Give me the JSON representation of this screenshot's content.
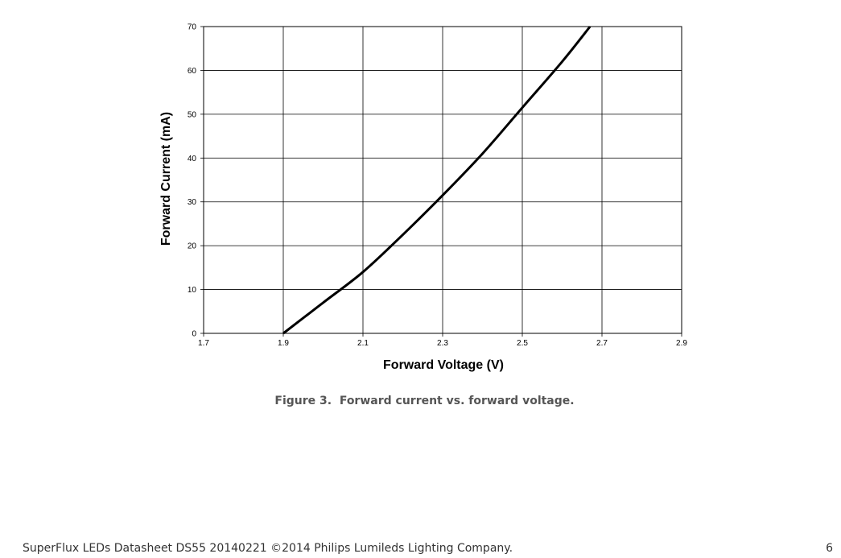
{
  "figure": {
    "caption": "Figure 3.  Forward current vs. forward voltage."
  },
  "footer": {
    "text": "SuperFlux LEDs Datasheet DS55 20140221 ©2014 Philips Lumileds Lighting Company.",
    "page_number": "6"
  },
  "colors": {
    "curve": "#000000",
    "grid": "#000000",
    "caption": "#555555",
    "footer": "#333333"
  },
  "chart_data": {
    "type": "line",
    "title": "",
    "xlabel": "Forward Voltage (V)",
    "ylabel": "Forward Current (mA)",
    "xlim": [
      1.7,
      2.9
    ],
    "ylim": [
      0,
      70
    ],
    "x_ticks": [
      "1.7",
      "1.9",
      "2.1",
      "2.3",
      "2.5",
      "2.7",
      "2.9"
    ],
    "y_ticks": [
      "0",
      "10",
      "20",
      "30",
      "40",
      "50",
      "60",
      "70"
    ],
    "grid": true,
    "legend": "none",
    "series": [
      {
        "x": [
          1.9,
          2.0,
          2.1,
          2.2,
          2.3,
          2.4,
          2.5,
          2.6,
          2.67
        ],
        "y": [
          0,
          7,
          14,
          22.5,
          31.5,
          41,
          51.5,
          62,
          70
        ]
      }
    ]
  }
}
